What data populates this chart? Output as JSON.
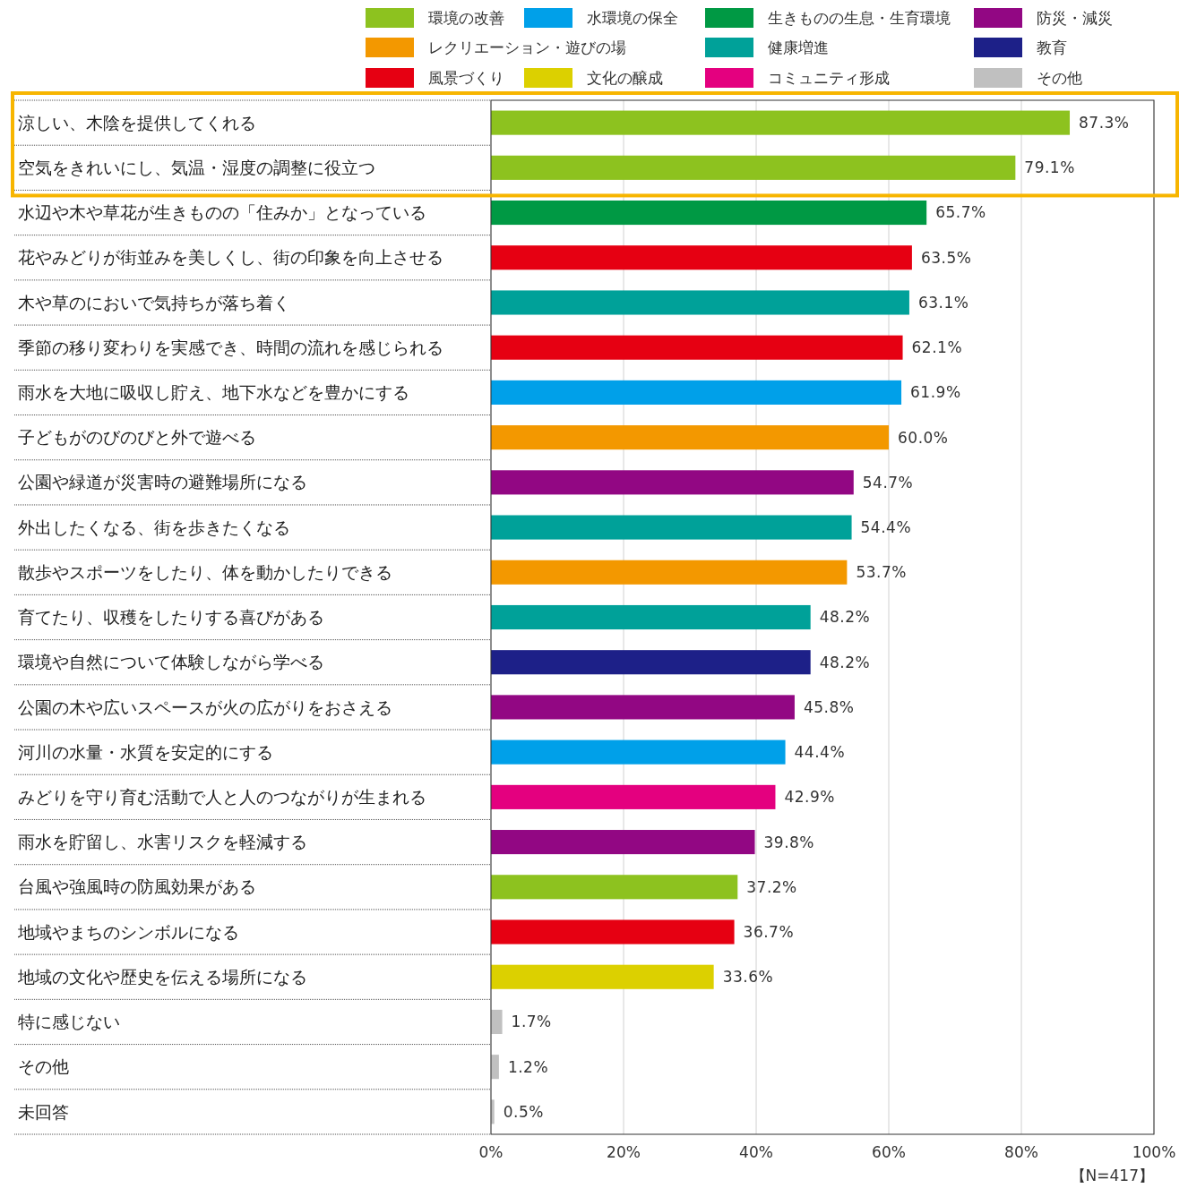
{
  "chart_data": {
    "type": "bar",
    "orientation": "horizontal",
    "categories": [
      "涼しい、木陰を提供してくれる",
      "空気をきれいにし、気温・湿度の調整に役立つ",
      "水辺や木や草花が生きものの「住みか」となっている",
      "花やみどりが街並みを美しくし、街の印象を向上させる",
      "木や草のにおいで気持ちが落ち着く",
      "季節の移り変わりを実感でき、時間の流れを感じられる",
      "雨水を大地に吸収し貯え、地下水などを豊かにする",
      "子どもがのびのびと外で遊べる",
      "公園や緑道が災害時の避難場所になる",
      "外出したくなる、街を歩きたくなる",
      "散歩やスポーツをしたり、体を動かしたりできる",
      "育てたり、収穫をしたりする喜びがある",
      "環境や自然について体験しながら学べる",
      "公園の木や広いスペースが火の広がりをおさえる",
      "河川の水量・水質を安定的にする",
      "みどりを守り育む活動で人と人のつながりが生まれる",
      "雨水を貯留し、水害リスクを軽減する",
      "台風や強風時の防風効果がある",
      "地域やまちのシンボルになる",
      "地域の文化や歴史を伝える場所になる",
      "特に感じない",
      "その他",
      "未回答"
    ],
    "series": [
      {
        "name": "環境の改善",
        "color": "#8dc21f",
        "values": [
          87.3,
          79.1,
          null,
          null,
          null,
          null,
          null,
          null,
          null,
          null,
          null,
          null,
          null,
          null,
          null,
          null,
          null,
          37.2,
          null,
          null,
          null,
          null,
          null
        ],
        "value_labels": [
          "87.3%",
          "79.1%",
          null,
          null,
          null,
          null,
          null,
          null,
          null,
          null,
          null,
          null,
          null,
          null,
          null,
          null,
          null,
          "37.2%",
          null,
          null,
          null,
          null,
          null
        ]
      },
      {
        "name": "水環境の保全",
        "color": "#00a0e9",
        "values": [
          null,
          null,
          null,
          null,
          null,
          null,
          61.9,
          null,
          null,
          null,
          null,
          null,
          null,
          null,
          44.4,
          null,
          null,
          null,
          null,
          null,
          null,
          null,
          null
        ],
        "value_labels": [
          null,
          null,
          null,
          null,
          null,
          null,
          "61.9%",
          null,
          null,
          null,
          null,
          null,
          null,
          null,
          "44.4%",
          null,
          null,
          null,
          null,
          null,
          null,
          null,
          null
        ]
      },
      {
        "name": "生きものの生息・生育環境",
        "color": "#009944",
        "values": [
          null,
          null,
          65.7,
          null,
          null,
          null,
          null,
          null,
          null,
          null,
          null,
          null,
          null,
          null,
          null,
          null,
          null,
          null,
          null,
          null,
          null,
          null,
          null
        ],
        "value_labels": [
          null,
          null,
          "65.7%",
          null,
          null,
          null,
          null,
          null,
          null,
          null,
          null,
          null,
          null,
          null,
          null,
          null,
          null,
          null,
          null,
          null,
          null,
          null,
          null
        ]
      },
      {
        "name": "防災・減災",
        "color": "#920783",
        "values": [
          null,
          null,
          null,
          null,
          null,
          null,
          null,
          null,
          54.7,
          null,
          null,
          null,
          null,
          45.8,
          null,
          null,
          39.8,
          null,
          null,
          null,
          null,
          null,
          null
        ],
        "value_labels": [
          null,
          null,
          null,
          null,
          null,
          null,
          null,
          null,
          "54.7%",
          null,
          null,
          null,
          null,
          "45.8%",
          null,
          null,
          "39.8%",
          null,
          null,
          null,
          null,
          null,
          null
        ]
      },
      {
        "name": "レクリエーション・遊びの場",
        "color": "#f39800",
        "values": [
          null,
          null,
          null,
          null,
          null,
          null,
          null,
          60.0,
          null,
          null,
          53.7,
          null,
          null,
          null,
          null,
          null,
          null,
          null,
          null,
          null,
          null,
          null,
          null
        ],
        "value_labels": [
          null,
          null,
          null,
          null,
          null,
          null,
          null,
          "60.0%",
          null,
          null,
          "53.7%",
          null,
          null,
          null,
          null,
          null,
          null,
          null,
          null,
          null,
          null,
          null,
          null
        ]
      },
      {
        "name": "健康増進",
        "color": "#00a199",
        "values": [
          null,
          null,
          null,
          null,
          63.1,
          null,
          null,
          null,
          null,
          54.4,
          null,
          48.2,
          null,
          null,
          null,
          null,
          null,
          null,
          null,
          null,
          null,
          null,
          null
        ],
        "value_labels": [
          null,
          null,
          null,
          null,
          "63.1%",
          null,
          null,
          null,
          null,
          "54.4%",
          null,
          "48.2%",
          null,
          null,
          null,
          null,
          null,
          null,
          null,
          null,
          null,
          null,
          null
        ]
      },
      {
        "name": "教育",
        "color": "#1d2088",
        "values": [
          null,
          null,
          null,
          null,
          null,
          null,
          null,
          null,
          null,
          null,
          null,
          null,
          48.2,
          null,
          null,
          null,
          null,
          null,
          null,
          null,
          null,
          null,
          null
        ],
        "value_labels": [
          null,
          null,
          null,
          null,
          null,
          null,
          null,
          null,
          null,
          null,
          null,
          null,
          "48.2%",
          null,
          null,
          null,
          null,
          null,
          null,
          null,
          null,
          null,
          null
        ]
      },
      {
        "name": "風景づくり",
        "color": "#e60012",
        "values": [
          null,
          null,
          null,
          63.5,
          null,
          62.1,
          null,
          null,
          null,
          null,
          null,
          null,
          null,
          null,
          null,
          null,
          null,
          null,
          36.7,
          null,
          null,
          null,
          null
        ],
        "value_labels": [
          null,
          null,
          null,
          "63.5%",
          null,
          "62.1%",
          null,
          null,
          null,
          null,
          null,
          null,
          null,
          null,
          null,
          null,
          null,
          null,
          "36.7%",
          null,
          null,
          null,
          null
        ]
      },
      {
        "name": "文化の醸成",
        "color": "#dcd000",
        "values": [
          null,
          null,
          null,
          null,
          null,
          null,
          null,
          null,
          null,
          null,
          null,
          null,
          null,
          null,
          null,
          null,
          null,
          null,
          null,
          33.6,
          null,
          null,
          null
        ],
        "value_labels": [
          null,
          null,
          null,
          null,
          null,
          null,
          null,
          null,
          null,
          null,
          null,
          null,
          null,
          null,
          null,
          null,
          null,
          null,
          null,
          "33.6%",
          null,
          null,
          null
        ]
      },
      {
        "name": "コミュニティ形成",
        "color": "#e4007f",
        "values": [
          null,
          null,
          null,
          null,
          null,
          null,
          null,
          null,
          null,
          null,
          null,
          null,
          null,
          null,
          null,
          42.9,
          null,
          null,
          null,
          null,
          null,
          null,
          null
        ],
        "value_labels": [
          null,
          null,
          null,
          null,
          null,
          null,
          null,
          null,
          null,
          null,
          null,
          null,
          null,
          null,
          null,
          "42.9%",
          null,
          null,
          null,
          null,
          null,
          null,
          null
        ]
      },
      {
        "name": "その他",
        "color": "#c0c0c0",
        "values": [
          null,
          null,
          null,
          null,
          null,
          null,
          null,
          null,
          null,
          null,
          null,
          null,
          null,
          null,
          null,
          null,
          null,
          null,
          null,
          null,
          1.7,
          1.2,
          0.5
        ],
        "value_labels": [
          null,
          null,
          null,
          null,
          null,
          null,
          null,
          null,
          null,
          null,
          null,
          null,
          null,
          null,
          null,
          null,
          null,
          null,
          null,
          null,
          "1.7%",
          "1.2%",
          "0.5%"
        ]
      }
    ],
    "xlim": [
      0,
      100
    ],
    "xticks": [
      {
        "value": 0,
        "label": "0%"
      },
      {
        "value": 20,
        "label": "20%"
      },
      {
        "value": 40,
        "label": "40%"
      },
      {
        "value": 60,
        "label": "60%"
      },
      {
        "value": 80,
        "label": "80%"
      },
      {
        "value": 100,
        "label": "100%"
      }
    ],
    "grid": "x",
    "legend": "top",
    "annotations": [
      "【N=417】"
    ]
  }
}
